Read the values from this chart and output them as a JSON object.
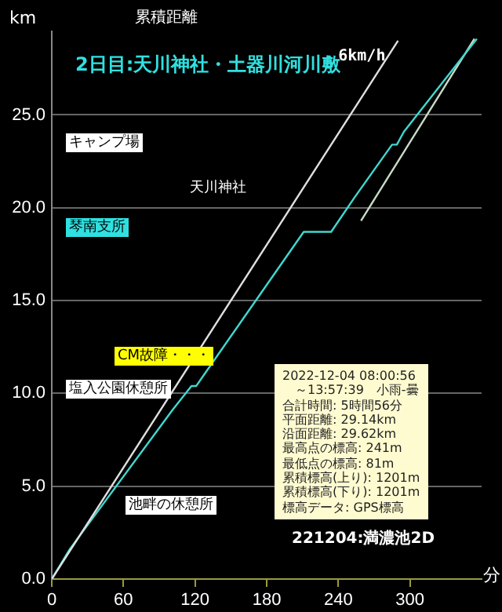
{
  "chart_data": {
    "type": "line",
    "title": "累積距離",
    "subtitle": "2日目:天川神社・土器川河川敷",
    "xlabel": "分",
    "ylabel": "km",
    "xlim": [
      0,
      360
    ],
    "xticks": [
      0,
      60,
      120,
      180,
      240,
      300
    ],
    "ylim": [
      0,
      29.5
    ],
    "yticks": [
      {
        "value": 0,
        "label": "0.0"
      },
      {
        "value": 5,
        "label": "5.0"
      },
      {
        "value": 10,
        "label": "10.0"
      },
      {
        "value": 15,
        "label": "15.0"
      },
      {
        "value": 20,
        "label": "20.0"
      },
      {
        "value": 25,
        "label": "25.0"
      }
    ],
    "grid": "y",
    "legend": false,
    "marker": "none",
    "line_style": "solid",
    "series": [
      {
        "name": "6km/h",
        "color": "#e0e0e0",
        "x": [
          0,
          290
        ],
        "values": [
          0,
          29
        ]
      },
      {
        "color": "#40d8d0",
        "x": [
          0,
          15,
          101,
          117,
          121,
          211,
          234,
          253,
          285,
          289,
          295,
          356
        ],
        "values": [
          0,
          1.6,
          9.1,
          10.4,
          10.4,
          18.7,
          18.7,
          20.5,
          23.4,
          23.4,
          24.1,
          29.1
        ]
      },
      {
        "color": "#c8dcc8",
        "x": [
          259,
          354
        ],
        "values": [
          19.3,
          29.1
        ]
      }
    ],
    "annotations": [
      "キャンプ場",
      "天川神社",
      "琴南支所",
      "CM故障・・・",
      "塩入公園休憩所",
      "池畔の休憩所",
      "2022-12-04 08:00:56",
      "　～13:57:39　小雨-曇",
      "合計時間: 5時間56分",
      "平面距離: 29.14km",
      "沿面距離: 29.62km",
      "最高点の標高: 241m",
      "最低点の標高: 81m",
      "累積標高(上り): 1201m",
      "累積標高(下り): 1201m",
      "標高データ: GPS標高",
      "221204:満濃池2D"
    ]
  }
}
